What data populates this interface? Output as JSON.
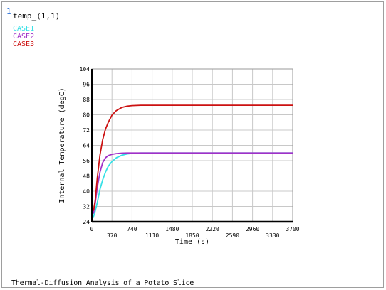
{
  "window_number": "1",
  "variable_label": "temp_(1,1)",
  "subtitle": "Thermal-Diffusion Analysis of a Potato Slice",
  "chart_data": {
    "type": "line",
    "xlabel": "Time (s)",
    "ylabel": "Internal Temperature (degC)",
    "xlim": [
      0,
      3700
    ],
    "ylim": [
      24,
      104
    ],
    "x_ticks": [
      "0",
      "370",
      "740",
      "1110",
      "1480",
      "1850",
      "2220",
      "2590",
      "2960",
      "3330",
      "3700"
    ],
    "y_ticks": [
      "24",
      "32",
      "40",
      "48",
      "56",
      "64",
      "72",
      "80",
      "88",
      "96",
      "104"
    ],
    "grid": true,
    "legend_position": "top-left",
    "series": [
      {
        "name": "CASE1",
        "color": "#36e0e6",
        "x": [
          30,
          60,
          100,
          150,
          200,
          250,
          300,
          370,
          450,
          550,
          650,
          740,
          900,
          1110,
          1480,
          2000,
          2590,
          3000,
          3700
        ],
        "y": [
          26.7,
          29.5,
          34,
          41,
          46,
          50,
          53,
          55.5,
          57.5,
          58.8,
          59.5,
          59.8,
          60,
          60,
          60,
          60,
          60,
          60,
          60
        ]
      },
      {
        "name": "CASE2",
        "color": "#a030c8",
        "x": [
          30,
          60,
          100,
          150,
          200,
          250,
          300,
          370,
          450,
          550,
          650,
          740,
          900,
          1110,
          1480,
          2000,
          2590,
          3000,
          3700
        ],
        "y": [
          28.5,
          33.5,
          42,
          50,
          55,
          57.5,
          58.6,
          59.3,
          59.7,
          59.9,
          60,
          60,
          60,
          60,
          60,
          60,
          60,
          60,
          60
        ]
      },
      {
        "name": "CASE3",
        "color": "#cc1111",
        "x": [
          30,
          60,
          100,
          150,
          200,
          250,
          300,
          370,
          450,
          550,
          650,
          740,
          900,
          1110,
          1480,
          2000,
          2590,
          3000,
          3700
        ],
        "y": [
          30,
          35,
          47,
          59,
          67,
          72.5,
          76,
          79.8,
          82.2,
          83.8,
          84.5,
          84.8,
          85,
          85,
          85,
          85,
          85,
          85,
          85
        ]
      }
    ]
  }
}
